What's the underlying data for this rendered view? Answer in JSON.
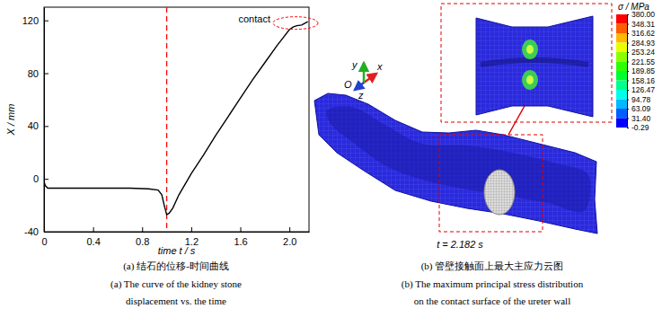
{
  "chart_data": [
    {
      "type": "line",
      "x_label": "time t / s",
      "y_label": "X / mm",
      "xlim": [
        0,
        2.16
      ],
      "ylim": [
        -40,
        130
      ],
      "xticks": [
        0,
        0.4,
        0.8,
        1.2,
        1.6,
        {
          "value": 2,
          "label": "2.0"
        }
      ],
      "yticks": [
        -40,
        0,
        40,
        80,
        120
      ],
      "color": "#000000",
      "x": [
        0,
        0.01,
        0.03,
        0.1,
        0.3,
        0.5,
        0.7,
        0.85,
        0.93,
        0.96,
        0.98,
        1.0,
        1.02,
        1.05,
        1.1,
        1.2,
        1.3,
        1.4,
        1.5,
        1.6,
        1.7,
        1.8,
        1.9,
        1.95,
        2.0,
        2.03,
        2.06,
        2.1,
        2.13,
        2.15
      ],
      "values": [
        -2,
        -5,
        -7,
        -7,
        -7,
        -7,
        -7,
        -7.5,
        -8.5,
        -12,
        -20,
        -27,
        -26,
        -22,
        -12,
        4,
        18,
        33,
        47,
        61,
        75,
        88,
        101,
        107,
        113,
        115,
        116,
        116.5,
        118,
        119
      ],
      "reference_line": {
        "x": 1,
        "color": "#ff0000",
        "line_style": "dashed"
      },
      "annotations": [
        {
          "text": "contact",
          "x": 2.05,
          "y": 118
        }
      ],
      "caption": [
        "(a) 结石的位移-时间曲线",
        "(a) The curve of the kidney stone",
        "displacement vs. the time"
      ]
    },
    {
      "type": "contour",
      "title": "σ / MPa",
      "time_label": "t = 2.182 s",
      "axis_labels": [
        "x",
        "y",
        "z",
        "O"
      ],
      "colorbar_range": [
        -0.29,
        380
      ],
      "colorbar_ticks": [
        {
          "value": 380,
          "label": "380.00"
        },
        348.31,
        316.62,
        284.93,
        253.24,
        221.55,
        189.85,
        158.16,
        126.47,
        94.78,
        63.09,
        {
          "value": 31.4,
          "label": "31.40"
        },
        -0.29
      ],
      "colors": [
        "#ff0000",
        "#ff5d00",
        "#ffb900",
        "#e8ff00",
        "#8bff00",
        "#2eff00",
        "#00ff2e",
        "#00ff8b",
        "#00ffe8",
        "#00b9ff",
        "#005dff",
        "#0000ff"
      ],
      "caption": [
        "(b) 管壁接触面上最大主应力云图",
        "(b) The maximum principal stress distribution",
        "on the contact surface of the ureter wall"
      ]
    }
  ]
}
